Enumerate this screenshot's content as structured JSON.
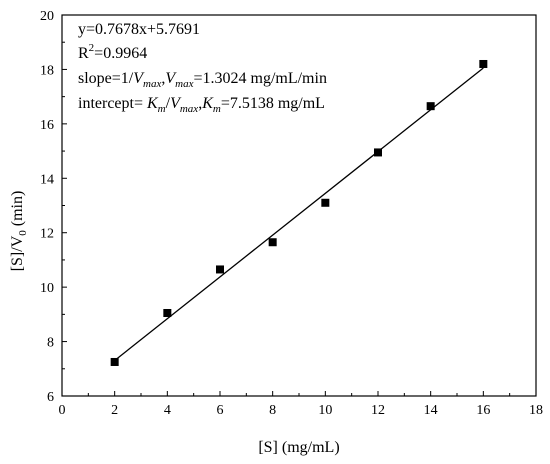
{
  "chart_data": {
    "type": "scatter",
    "title": "",
    "xlabel": "[S] (mg/mL)",
    "ylabel_parts": {
      "pre": "[S]/V",
      "sub": "0",
      "post": " (min)"
    },
    "xlim": [
      0,
      18
    ],
    "ylim": [
      6,
      20
    ],
    "xticks": [
      0,
      2,
      4,
      6,
      8,
      10,
      12,
      14,
      16,
      18
    ],
    "yticks": [
      6,
      8,
      10,
      12,
      14,
      16,
      18,
      20
    ],
    "grid": false,
    "series": [
      {
        "marker": "square",
        "color": "#000000",
        "x": [
          2,
          4,
          6,
          8,
          10,
          12,
          14,
          16
        ],
        "y": [
          7.25,
          9.05,
          10.65,
          11.65,
          13.1,
          14.95,
          16.65,
          18.2
        ]
      }
    ],
    "fit_line": {
      "slope": 0.7678,
      "intercept": 5.7691,
      "x_range": [
        2,
        16
      ],
      "color": "#000000"
    },
    "annotations": {
      "equation": "y=0.7678x+5.7691",
      "r2_pre": "R",
      "r2_sup": "2",
      "r2_post": "=0.9964",
      "slope_line": {
        "t1": "slope=1/",
        "vmax_v": "V",
        "vmax_sub": "max",
        "t2": ",",
        "t3": "=1.3024 mg/mL/min"
      },
      "intercept_line": {
        "t1": "intercept= ",
        "km_k": "K",
        "km_sub": "m",
        "t2": "/",
        "t3": ",",
        "t4": "=7.5138 mg/mL"
      }
    }
  }
}
